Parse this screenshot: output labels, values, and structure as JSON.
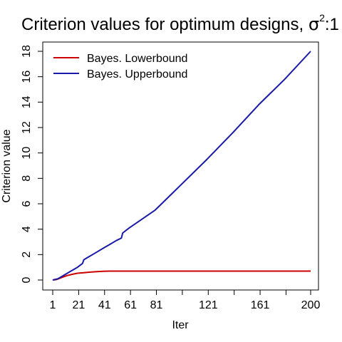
{
  "chart_data": {
    "type": "line",
    "title": "Criterion values for optimum designs, ",
    "title_sigma": "σ",
    "title_sup": "2",
    "title_tail": ":1",
    "xlabel": "Iter",
    "ylabel": "Criterion value",
    "xlim": [
      1,
      200
    ],
    "ylim": [
      0,
      18
    ],
    "xticks": [
      1,
      21,
      41,
      61,
      81,
      101,
      121,
      141,
      161,
      181,
      200
    ],
    "xtick_labels": [
      "1",
      "21",
      "41",
      "61",
      "81",
      "",
      "121",
      "",
      "161",
      "",
      "200"
    ],
    "yticks": [
      0,
      2,
      4,
      6,
      8,
      10,
      12,
      14,
      16,
      18
    ],
    "legend_position": "top-left",
    "series": [
      {
        "name": "Bayes. Lowerbound",
        "color": "#cc0000",
        "x": [
          1,
          3,
          5,
          8,
          12,
          16,
          20,
          25,
          30,
          35,
          40,
          45,
          50,
          60,
          80,
          100,
          120,
          140,
          160,
          180,
          200
        ],
        "y": [
          0.0,
          0.02,
          0.08,
          0.2,
          0.35,
          0.45,
          0.53,
          0.58,
          0.62,
          0.66,
          0.69,
          0.7,
          0.7,
          0.7,
          0.7,
          0.7,
          0.7,
          0.7,
          0.7,
          0.7,
          0.7
        ]
      },
      {
        "name": "Bayes. Upperbound",
        "color": "#1a1aaa",
        "x": [
          1,
          5,
          10,
          15,
          20,
          24,
          25,
          30,
          35,
          40,
          45,
          50,
          54,
          55,
          60,
          70,
          80,
          90,
          100,
          120,
          140,
          160,
          180,
          200
        ],
        "y": [
          0.0,
          0.1,
          0.4,
          0.7,
          1.0,
          1.3,
          1.6,
          1.9,
          2.2,
          2.5,
          2.8,
          3.1,
          3.3,
          3.7,
          4.1,
          4.8,
          5.5,
          6.5,
          7.5,
          9.5,
          11.6,
          13.8,
          15.8,
          18.0
        ]
      }
    ]
  }
}
